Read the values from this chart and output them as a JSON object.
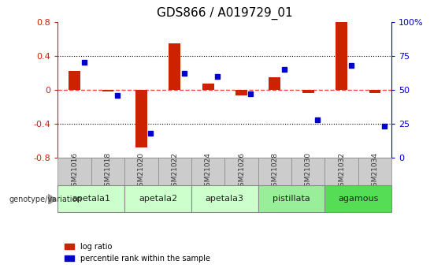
{
  "title": "GDS866 / A019729_01",
  "samples": [
    "GSM21016",
    "GSM21018",
    "GSM21020",
    "GSM21022",
    "GSM21024",
    "GSM21026",
    "GSM21028",
    "GSM21030",
    "GSM21032",
    "GSM21034"
  ],
  "log_ratios": [
    0.22,
    -0.02,
    -0.68,
    0.55,
    0.07,
    -0.07,
    0.15,
    -0.04,
    0.8,
    -0.04
  ],
  "percentile_ranks": [
    70,
    46,
    18,
    62,
    60,
    47,
    65,
    28,
    68,
    23
  ],
  "ylim_left": [
    -0.8,
    0.8
  ],
  "ylim_right": [
    0,
    100
  ],
  "yticks_left": [
    -0.8,
    -0.4,
    0,
    0.4,
    0.8
  ],
  "yticks_right": [
    0,
    25,
    50,
    75,
    100
  ],
  "groups": [
    {
      "label": "apetala1",
      "indices": [
        0,
        1
      ],
      "color": "#ccffcc"
    },
    {
      "label": "apetala2",
      "indices": [
        2,
        3
      ],
      "color": "#ccffcc"
    },
    {
      "label": "apetala3",
      "indices": [
        4,
        5
      ],
      "color": "#ccffcc"
    },
    {
      "label": "pistillata",
      "indices": [
        6,
        7
      ],
      "color": "#99ee99"
    },
    {
      "label": "agamous",
      "indices": [
        8,
        9
      ],
      "color": "#55dd55"
    }
  ],
  "bar_color": "#cc2200",
  "dot_color": "#0000cc",
  "hline_color": "#ff4444",
  "grid_color": "#000000",
  "background_color": "#ffffff",
  "sample_row_color": "#cccccc",
  "left_yaxis_color": "#cc2200",
  "right_yaxis_color": "#0000cc"
}
